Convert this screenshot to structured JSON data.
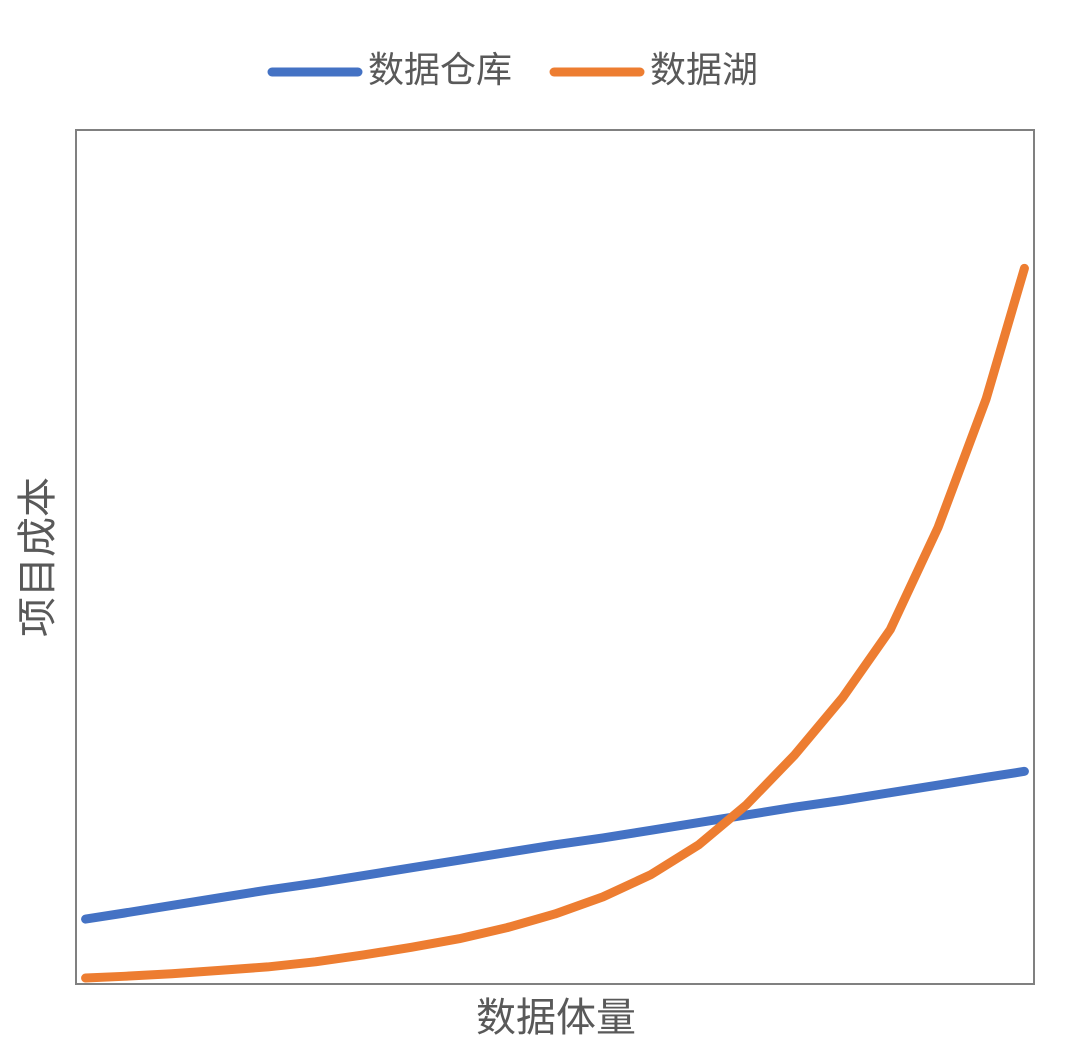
{
  "chart_data": {
    "type": "line",
    "x": [
      1,
      5,
      10,
      15,
      20,
      25,
      30,
      35,
      40,
      45,
      50,
      55,
      60,
      65,
      70,
      75,
      80,
      85,
      90,
      95,
      99
    ],
    "xlim": [
      0,
      100
    ],
    "ylim": [
      0,
      100
    ],
    "x_label": "数据体量",
    "y_label": "项目成本",
    "legend": "top",
    "grid": false,
    "series": [
      {
        "name": "数据仓库",
        "color": "#4472c4",
        "values": [
          7.6,
          8.3,
          9.2,
          10.1,
          11.0,
          11.8,
          12.7,
          13.6,
          14.5,
          15.4,
          16.3,
          17.1,
          18.0,
          18.9,
          19.8,
          20.7,
          21.5,
          22.4,
          23.3,
          24.2,
          24.9
        ]
      },
      {
        "name": "数据湖",
        "color": "#ed7d31",
        "values": [
          0.7,
          0.9,
          1.2,
          1.6,
          2.0,
          2.6,
          3.4,
          4.3,
          5.3,
          6.6,
          8.2,
          10.2,
          12.8,
          16.3,
          21.0,
          26.8,
          33.5,
          41.5,
          53.5,
          68.5,
          83.8
        ]
      }
    ]
  }
}
